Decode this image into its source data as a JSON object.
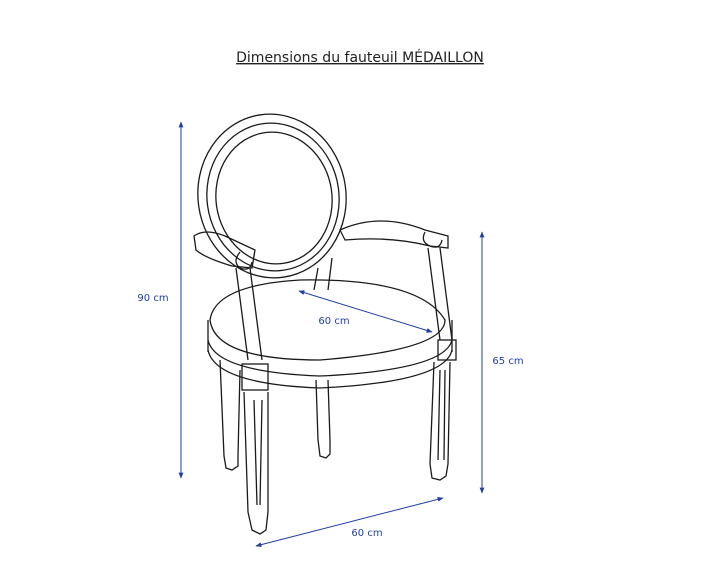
{
  "title": "Dimensions du fauteuil MÉDAILLON",
  "dimensions": [
    {
      "name": "height",
      "label": "90 cm"
    },
    {
      "name": "seat-height",
      "label": "65 cm"
    },
    {
      "name": "seat-depth",
      "label": "60 cm"
    },
    {
      "name": "width",
      "label": "60 cm"
    }
  ]
}
